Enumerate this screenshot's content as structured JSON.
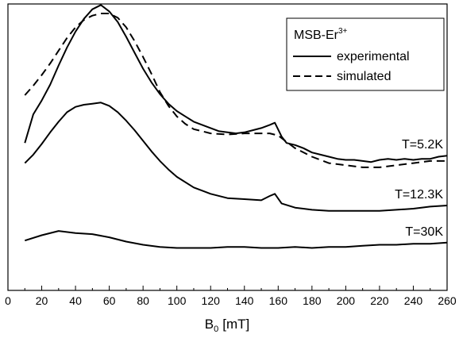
{
  "chart_data": {
    "type": "line",
    "xlabel": "B",
    "xlabel_sub": "0",
    "xlabel_unit": "[mT]",
    "xlim": [
      0,
      260
    ],
    "x_ticks": [
      0,
      20,
      40,
      60,
      80,
      100,
      120,
      140,
      160,
      180,
      200,
      220,
      240,
      260
    ],
    "ylabel": "",
    "y_ticks_shown": false,
    "grid": false,
    "legend": {
      "position": "top-right",
      "title": "MSB-Er",
      "title_sup": "3+",
      "entries": [
        {
          "label": "experimental",
          "style": "solid"
        },
        {
          "label": "simulated",
          "style": "dashed"
        }
      ]
    },
    "series": [
      {
        "name": "experimental",
        "label": "T=5.2K",
        "style": "solid",
        "x": [
          10,
          15,
          20,
          25,
          30,
          35,
          40,
          45,
          50,
          55,
          60,
          65,
          70,
          75,
          80,
          85,
          90,
          95,
          100,
          105,
          110,
          115,
          120,
          125,
          130,
          135,
          140,
          145,
          150,
          155,
          158,
          162,
          165,
          170,
          175,
          180,
          185,
          190,
          195,
          200,
          205,
          210,
          215,
          220,
          225,
          230,
          235,
          240,
          245,
          250,
          255,
          260
        ],
        "y": [
          6.55,
          5.2,
          4.55,
          3.8,
          2.9,
          2.05,
          1.3,
          0.7,
          0.25,
          0.05,
          0.35,
          0.85,
          1.55,
          2.3,
          3.05,
          3.7,
          4.25,
          4.7,
          5.05,
          5.3,
          5.55,
          5.7,
          5.85,
          6.0,
          6.05,
          6.1,
          6.05,
          5.95,
          5.85,
          5.7,
          5.6,
          6.25,
          6.55,
          6.65,
          6.8,
          7.0,
          7.1,
          7.2,
          7.3,
          7.35,
          7.35,
          7.4,
          7.45,
          7.35,
          7.3,
          7.35,
          7.3,
          7.35,
          7.3,
          7.3,
          7.2,
          7.15
        ]
      },
      {
        "name": "simulated",
        "label": "",
        "style": "dashed",
        "x": [
          10,
          15,
          20,
          25,
          30,
          35,
          40,
          45,
          50,
          55,
          60,
          65,
          70,
          75,
          80,
          85,
          90,
          95,
          100,
          105,
          110,
          115,
          120,
          130,
          140,
          150,
          155,
          160,
          165,
          170,
          180,
          190,
          200,
          210,
          220,
          230,
          240,
          250,
          260
        ],
        "y": [
          4.3,
          3.85,
          3.35,
          2.8,
          2.2,
          1.6,
          1.1,
          0.75,
          0.55,
          0.45,
          0.45,
          0.65,
          1.1,
          1.75,
          2.5,
          3.3,
          4.15,
          4.8,
          5.3,
          5.65,
          5.9,
          6.0,
          6.1,
          6.15,
          6.1,
          6.1,
          6.1,
          6.2,
          6.5,
          6.8,
          7.2,
          7.5,
          7.6,
          7.7,
          7.7,
          7.6,
          7.5,
          7.4,
          7.4
        ]
      },
      {
        "name": "T=12.3K",
        "label": "T=12.3K",
        "style": "solid",
        "x": [
          10,
          15,
          20,
          25,
          30,
          35,
          40,
          45,
          50,
          55,
          60,
          65,
          70,
          75,
          80,
          85,
          90,
          95,
          100,
          110,
          120,
          130,
          140,
          150,
          155,
          158,
          162,
          170,
          180,
          190,
          200,
          210,
          220,
          230,
          240,
          250,
          260
        ],
        "y": [
          7.5,
          7.1,
          6.6,
          6.05,
          5.55,
          5.1,
          4.85,
          4.75,
          4.7,
          4.65,
          4.8,
          5.1,
          5.5,
          5.95,
          6.45,
          6.95,
          7.4,
          7.8,
          8.15,
          8.65,
          8.95,
          9.15,
          9.2,
          9.25,
          9.05,
          8.95,
          9.4,
          9.6,
          9.7,
          9.75,
          9.75,
          9.75,
          9.75,
          9.7,
          9.65,
          9.55,
          9.5
        ]
      },
      {
        "name": "T=30K",
        "label": "T=30K",
        "style": "solid",
        "x": [
          10,
          20,
          30,
          40,
          50,
          60,
          70,
          80,
          90,
          100,
          110,
          120,
          130,
          140,
          150,
          160,
          170,
          180,
          190,
          200,
          210,
          220,
          230,
          240,
          250,
          260
        ],
        "y": [
          11.15,
          10.9,
          10.7,
          10.8,
          10.85,
          11.0,
          11.2,
          11.35,
          11.45,
          11.5,
          11.5,
          11.5,
          11.45,
          11.45,
          11.5,
          11.5,
          11.45,
          11.5,
          11.45,
          11.45,
          11.4,
          11.35,
          11.35,
          11.3,
          11.3,
          11.25
        ]
      }
    ]
  }
}
